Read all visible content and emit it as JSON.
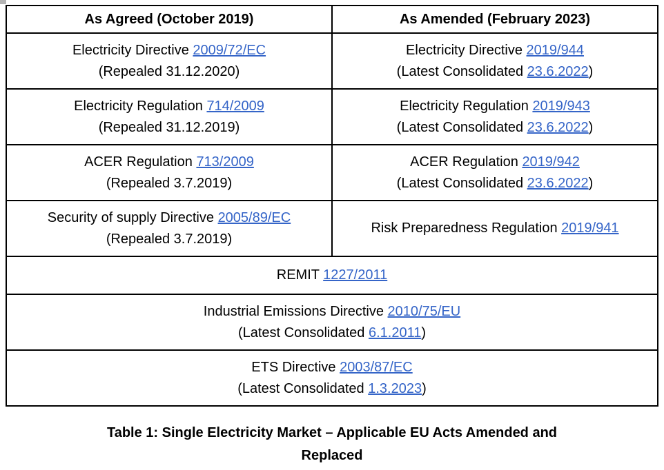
{
  "colors": {
    "link": "#3565c8",
    "border": "#000000",
    "text": "#000000",
    "background": "#ffffff",
    "corner_artifact": "#b4b4b4"
  },
  "table": {
    "headers": [
      "As Agreed (October 2019)",
      "As Amended (February 2023)"
    ],
    "rows": [
      {
        "cells": [
          {
            "lines": [
              [
                {
                  "t": "Electricity Directive "
                },
                {
                  "t": "2009/72/EC",
                  "link": true
                }
              ],
              [
                {
                  "t": "(Repealed 31.12.2020)"
                }
              ]
            ]
          },
          {
            "lines": [
              [
                {
                  "t": "Electricity Directive "
                },
                {
                  "t": "2019/944",
                  "link": true
                }
              ],
              [
                {
                  "t": "(Latest Consolidated "
                },
                {
                  "t": "23.6.2022",
                  "link": true
                },
                {
                  "t": ")"
                }
              ]
            ]
          }
        ]
      },
      {
        "cells": [
          {
            "lines": [
              [
                {
                  "t": "Electricity Regulation "
                },
                {
                  "t": "714/2009",
                  "link": true
                }
              ],
              [
                {
                  "t": "(Repealed 31.12.2019)"
                }
              ]
            ]
          },
          {
            "lines": [
              [
                {
                  "t": "Electricity Regulation "
                },
                {
                  "t": "2019/943",
                  "link": true
                }
              ],
              [
                {
                  "t": "(Latest Consolidated "
                },
                {
                  "t": "23.6.2022",
                  "link": true
                },
                {
                  "t": ")"
                }
              ]
            ]
          }
        ]
      },
      {
        "cells": [
          {
            "lines": [
              [
                {
                  "t": "ACER Regulation "
                },
                {
                  "t": "713/2009",
                  "link": true
                }
              ],
              [
                {
                  "t": "(Repealed 3.7.2019)"
                }
              ]
            ]
          },
          {
            "lines": [
              [
                {
                  "t": "ACER Regulation "
                },
                {
                  "t": "2019/942",
                  "link": true
                }
              ],
              [
                {
                  "t": "(Latest Consolidated "
                },
                {
                  "t": "23.6.2022",
                  "link": true
                },
                {
                  "t": ")"
                }
              ]
            ]
          }
        ]
      },
      {
        "cells": [
          {
            "lines": [
              [
                {
                  "t": "Security of supply Directive "
                },
                {
                  "t": "2005/89/EC",
                  "link": true
                }
              ],
              [
                {
                  "t": "(Repealed 3.7.2019)"
                }
              ]
            ]
          },
          {
            "lines": [
              [
                {
                  "t": "Risk Preparedness Regulation "
                },
                {
                  "t": "2019/941",
                  "link": true
                }
              ]
            ]
          }
        ]
      },
      {
        "cells": [
          {
            "lines": [
              [
                {
                  "t": "REMIT "
                },
                {
                  "t": "1227/2011",
                  "link": true
                }
              ]
            ]
          }
        ]
      },
      {
        "cells": [
          {
            "lines": [
              [
                {
                  "t": "Industrial Emissions Directive "
                },
                {
                  "t": "2010/75/EU",
                  "link": true
                }
              ],
              [
                {
                  "t": "(Latest Consolidated "
                },
                {
                  "t": "6.1.2011",
                  "link": true
                },
                {
                  "t": ")"
                }
              ]
            ]
          }
        ]
      },
      {
        "cells": [
          {
            "lines": [
              [
                {
                  "t": "ETS Directive "
                },
                {
                  "t": "2003/87/EC",
                  "link": true
                }
              ],
              [
                {
                  "t": "(Latest Consolidated "
                },
                {
                  "t": "1.3.2023",
                  "link": true
                },
                {
                  "t": ")"
                }
              ]
            ]
          }
        ]
      }
    ]
  },
  "caption": {
    "line1": "Table 1: Single Electricity Market – Applicable EU Acts Amended and",
    "line2": "Replaced"
  }
}
